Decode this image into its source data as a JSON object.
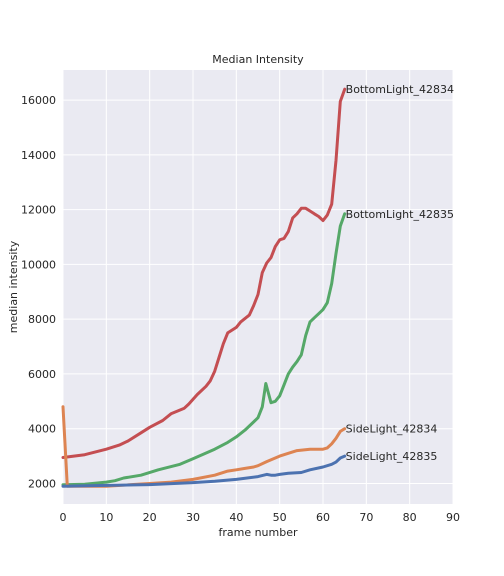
{
  "chart_data": {
    "type": "line",
    "title": "Median Intensity",
    "xlabel": "frame number",
    "ylabel": "median intensity",
    "xlim": [
      0,
      90
    ],
    "ylim": [
      1250,
      17100
    ],
    "x_ticks": [
      0,
      10,
      20,
      30,
      40,
      50,
      60,
      70,
      80,
      90
    ],
    "y_ticks": [
      2000,
      4000,
      6000,
      8000,
      10000,
      12000,
      14000,
      16000
    ],
    "grid": true,
    "background": "#eaeaf2",
    "series": [
      {
        "name": "BottomLight_42834",
        "color": "#c44e52",
        "points": [
          [
            0,
            2950
          ],
          [
            5,
            3050
          ],
          [
            10,
            3250
          ],
          [
            13,
            3400
          ],
          [
            15,
            3550
          ],
          [
            18,
            3850
          ],
          [
            20,
            4050
          ],
          [
            23,
            4300
          ],
          [
            25,
            4550
          ],
          [
            28,
            4750
          ],
          [
            29,
            4900
          ],
          [
            31,
            5250
          ],
          [
            33,
            5550
          ],
          [
            34,
            5750
          ],
          [
            35,
            6100
          ],
          [
            36,
            6600
          ],
          [
            37,
            7100
          ],
          [
            38,
            7500
          ],
          [
            40,
            7700
          ],
          [
            41,
            7900
          ],
          [
            43,
            8150
          ],
          [
            44,
            8500
          ],
          [
            45,
            8900
          ],
          [
            46,
            9700
          ],
          [
            47,
            10050
          ],
          [
            48,
            10250
          ],
          [
            49,
            10650
          ],
          [
            50,
            10900
          ],
          [
            51,
            10950
          ],
          [
            52,
            11200
          ],
          [
            53,
            11700
          ],
          [
            54,
            11850
          ],
          [
            55,
            12050
          ],
          [
            56,
            12050
          ],
          [
            57,
            11950
          ],
          [
            58,
            11850
          ],
          [
            59,
            11750
          ],
          [
            60,
            11600
          ],
          [
            61,
            11800
          ],
          [
            62,
            12200
          ],
          [
            63,
            13800
          ],
          [
            64,
            15950
          ],
          [
            65,
            16400
          ]
        ],
        "end_label": "BottomLight_42834"
      },
      {
        "name": "BottomLight_42835",
        "color": "#55a868",
        "points": [
          [
            0,
            1950
          ],
          [
            5,
            1970
          ],
          [
            10,
            2050
          ],
          [
            12,
            2100
          ],
          [
            14,
            2200
          ],
          [
            18,
            2300
          ],
          [
            22,
            2500
          ],
          [
            27,
            2700
          ],
          [
            30,
            2900
          ],
          [
            35,
            3250
          ],
          [
            38,
            3500
          ],
          [
            40,
            3700
          ],
          [
            42,
            3950
          ],
          [
            44,
            4250
          ],
          [
            45,
            4400
          ],
          [
            46,
            4800
          ],
          [
            46.8,
            5650
          ],
          [
            48,
            4950
          ],
          [
            49,
            5000
          ],
          [
            50,
            5200
          ],
          [
            51,
            5600
          ],
          [
            52,
            6000
          ],
          [
            53,
            6250
          ],
          [
            54,
            6450
          ],
          [
            55,
            6700
          ],
          [
            56,
            7400
          ],
          [
            57,
            7900
          ],
          [
            58,
            8050
          ],
          [
            59,
            8200
          ],
          [
            60,
            8350
          ],
          [
            61,
            8600
          ],
          [
            62,
            9300
          ],
          [
            63,
            10400
          ],
          [
            64,
            11400
          ],
          [
            65,
            11850
          ]
        ],
        "end_label": "BottomLight_42835"
      },
      {
        "name": "SideLight_42834",
        "color": "#dd8452",
        "points": [
          [
            0,
            4800
          ],
          [
            1,
            1900
          ],
          [
            10,
            1900
          ],
          [
            20,
            2000
          ],
          [
            25,
            2050
          ],
          [
            30,
            2150
          ],
          [
            35,
            2300
          ],
          [
            38,
            2450
          ],
          [
            40,
            2500
          ],
          [
            42,
            2550
          ],
          [
            44,
            2600
          ],
          [
            45,
            2650
          ],
          [
            47,
            2800
          ],
          [
            50,
            3000
          ],
          [
            52,
            3100
          ],
          [
            54,
            3200
          ],
          [
            57,
            3250
          ],
          [
            60,
            3250
          ],
          [
            61,
            3300
          ],
          [
            62,
            3450
          ],
          [
            63,
            3650
          ],
          [
            64,
            3900
          ],
          [
            65,
            4000
          ]
        ],
        "end_label": "SideLight_42834"
      },
      {
        "name": "SideLight_42835",
        "color": "#4c72b0",
        "points": [
          [
            0,
            1900
          ],
          [
            10,
            1930
          ],
          [
            20,
            1960
          ],
          [
            30,
            2030
          ],
          [
            35,
            2080
          ],
          [
            40,
            2150
          ],
          [
            45,
            2250
          ],
          [
            47,
            2330
          ],
          [
            48,
            2300
          ],
          [
            49,
            2300
          ],
          [
            50,
            2330
          ],
          [
            52,
            2370
          ],
          [
            55,
            2400
          ],
          [
            57,
            2500
          ],
          [
            60,
            2600
          ],
          [
            62,
            2700
          ],
          [
            63,
            2780
          ],
          [
            64,
            2930
          ],
          [
            65,
            3000
          ]
        ],
        "end_label": "SideLight_42835"
      }
    ]
  }
}
